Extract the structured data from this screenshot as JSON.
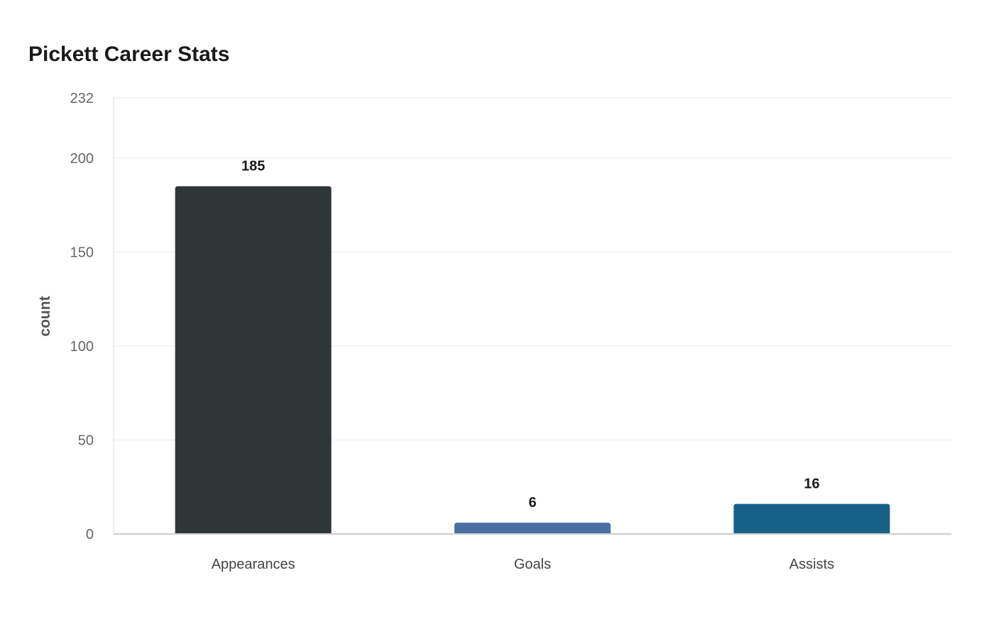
{
  "chart_data": {
    "type": "bar",
    "title": "Pickett Career Stats",
    "xlabel": "",
    "ylabel": "count",
    "categories": [
      "Appearances",
      "Goals",
      "Assists"
    ],
    "values": [
      185,
      6,
      16
    ],
    "data_labels": [
      "185",
      "6",
      "16"
    ],
    "colors": [
      "#2e3638",
      "#4a70a3",
      "#176187"
    ],
    "ylim": [
      0,
      232
    ],
    "yticks": [
      0,
      50,
      100,
      150,
      200,
      232
    ],
    "ytick_labels": [
      "0",
      "50",
      "100",
      "150",
      "200",
      "232"
    ],
    "grid": true,
    "legend": "none"
  }
}
